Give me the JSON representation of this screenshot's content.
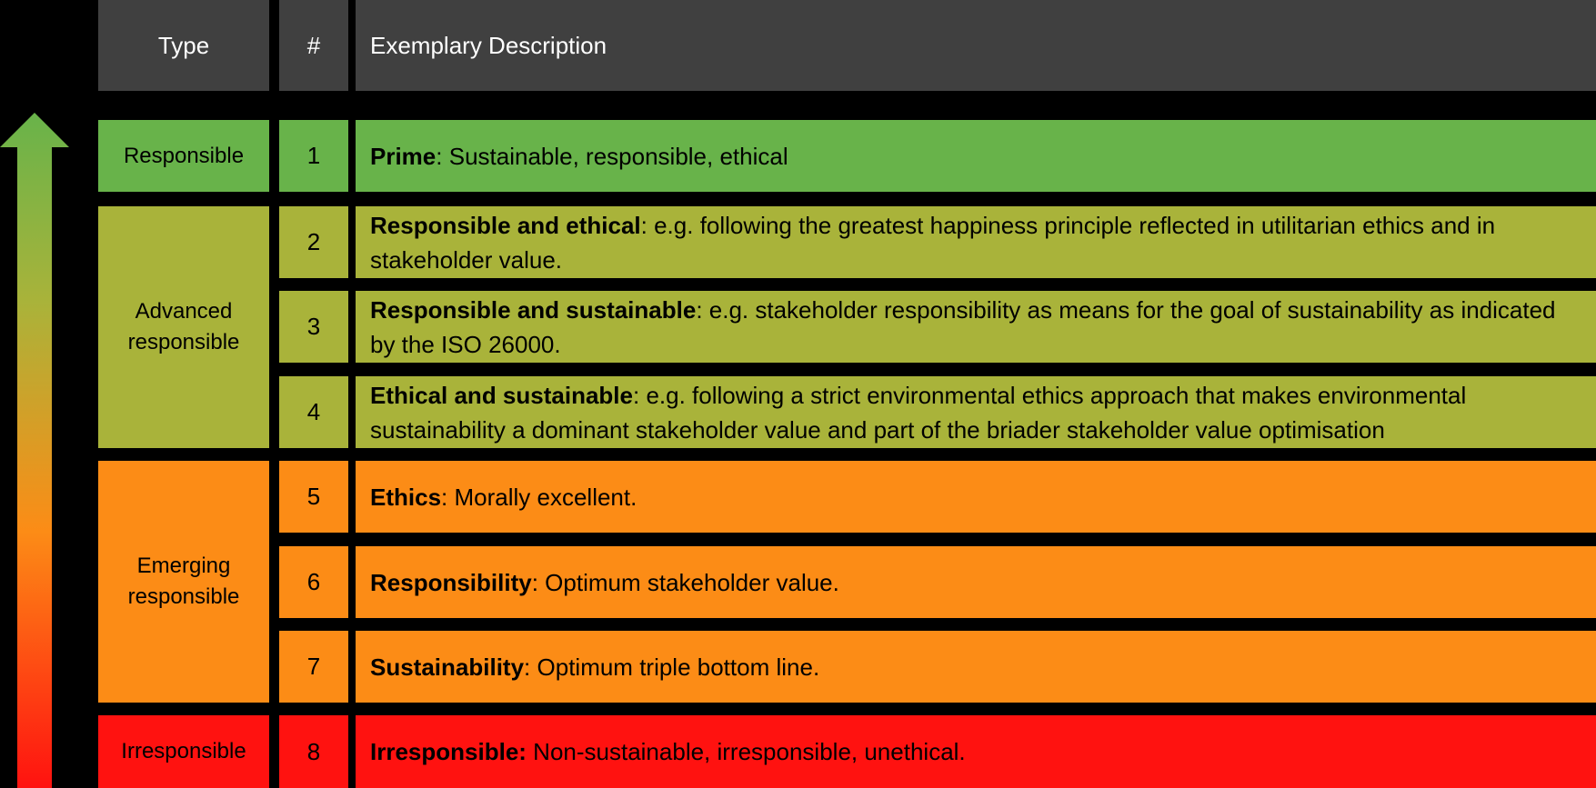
{
  "header": {
    "type_label": "Type",
    "num_label": "#",
    "desc_label": "Exemplary Description"
  },
  "groups": [
    {
      "label": "Responsible",
      "color": "#68b34a"
    },
    {
      "label": "Advanced responsible",
      "color": "#a9b33a"
    },
    {
      "label": "Emerging responsible",
      "color": "#fc8c16"
    },
    {
      "label": "Irresponsible",
      "color": "#ff1210"
    }
  ],
  "rows": [
    {
      "num": "1",
      "term": "Prime",
      "sep": ":",
      "text": " Sustainable, responsible, ethical"
    },
    {
      "num": "2",
      "term": "Responsible and ethical",
      "sep": ":",
      "text": " e.g. following the greatest happiness principle reflected in utilitarian ethics and in stakeholder value."
    },
    {
      "num": "3",
      "term": "Responsible and sustainable",
      "sep": ":",
      "text": " e.g. stakeholder responsibility as means for the goal of sustainability as indicated by the ISO 26000."
    },
    {
      "num": "4",
      "term": "Ethical and sustainable",
      "sep": ":",
      "text": " e.g. following a strict environmental ethics approach that makes environmental sustainability a dominant stakeholder value and part of the briader stakeholder value optimisation"
    },
    {
      "num": "5",
      "term": "Ethics",
      "sep": ":",
      "text": " Morally excellent."
    },
    {
      "num": "6",
      "term": "Responsibility",
      "sep": ":",
      "text": " Optimum stakeholder value."
    },
    {
      "num": "7",
      "term": "Sustainability",
      "sep": ":",
      "text": " Optimum triple bottom line."
    },
    {
      "num": "8",
      "term": "Irresponsible:",
      "sep": "",
      "text": " Non-sustainable, irresponsible, unethical."
    }
  ],
  "arrow": {
    "icon": "gradient-up-arrow-icon",
    "gradient": [
      "#68b34a",
      "#a9b33a",
      "#fc8c16",
      "#ff1210"
    ]
  }
}
